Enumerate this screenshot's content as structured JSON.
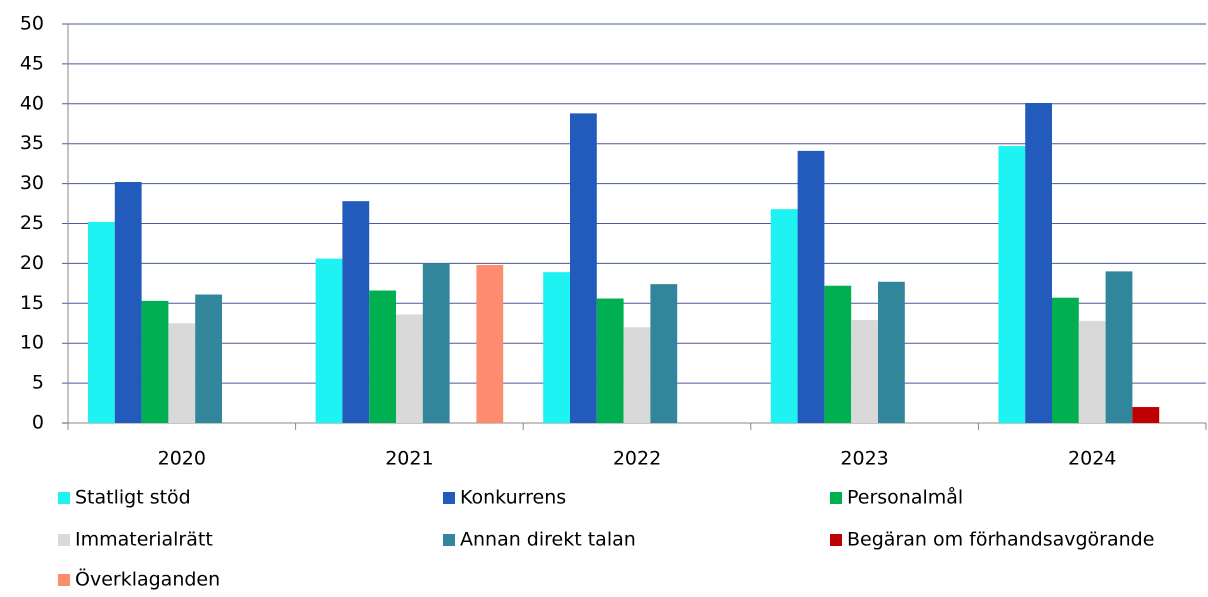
{
  "chart_data": {
    "type": "bar",
    "categories": [
      "2020",
      "2021",
      "2022",
      "2023",
      "2024"
    ],
    "series": [
      {
        "name": "Statligt stöd",
        "color": "#1ff2f2",
        "values": [
          25.2,
          20.6,
          18.9,
          26.8,
          34.7
        ]
      },
      {
        "name": "Konkurrens",
        "color": "#225bbb",
        "values": [
          30.2,
          27.8,
          38.8,
          34.1,
          40.1
        ]
      },
      {
        "name": "Personalmål",
        "color": "#00b050",
        "values": [
          15.3,
          16.6,
          15.6,
          17.2,
          15.7
        ]
      },
      {
        "name": "Immaterialrätt",
        "color": "#d9d9d9",
        "values": [
          12.5,
          13.6,
          12.0,
          12.9,
          12.8
        ]
      },
      {
        "name": "Annan direkt talan",
        "color": "#31869b",
        "values": [
          16.1,
          20.0,
          17.4,
          17.7,
          19.0
        ]
      },
      {
        "name": "Begäran om förhandsavgörande",
        "color": "#c00000",
        "values": [
          null,
          null,
          null,
          null,
          2.0
        ]
      },
      {
        "name": "Överklaganden",
        "color": "#ff8c6e",
        "values": [
          null,
          19.8,
          null,
          null,
          null
        ]
      }
    ],
    "ylim": [
      0,
      50
    ],
    "yticks": [
      0,
      5,
      10,
      15,
      20,
      25,
      30,
      35,
      40,
      45,
      50
    ],
    "grid": true,
    "legend": "bottom"
  }
}
